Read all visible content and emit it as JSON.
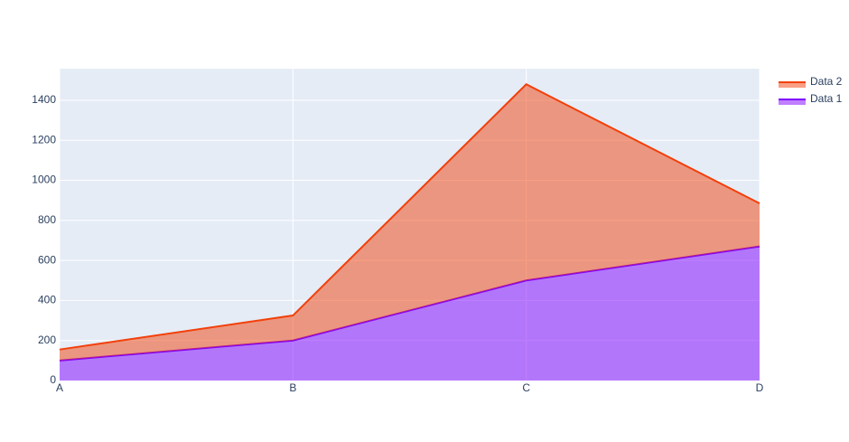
{
  "chart_data": {
    "type": "stacked_area",
    "categories": [
      "A",
      "B",
      "C",
      "D"
    ],
    "series": [
      {
        "name": "Data 1",
        "color": "#8000ff",
        "values": [
          100,
          200,
          500,
          670
        ]
      },
      {
        "name": "Data 2",
        "color": "#f2400a",
        "values": [
          55,
          125,
          980,
          215
        ]
      }
    ],
    "ylim": [
      0,
      1558
    ],
    "yticks": [
      0,
      200,
      400,
      600,
      800,
      1000,
      1200,
      1400
    ],
    "grid": true,
    "legend": "right"
  }
}
